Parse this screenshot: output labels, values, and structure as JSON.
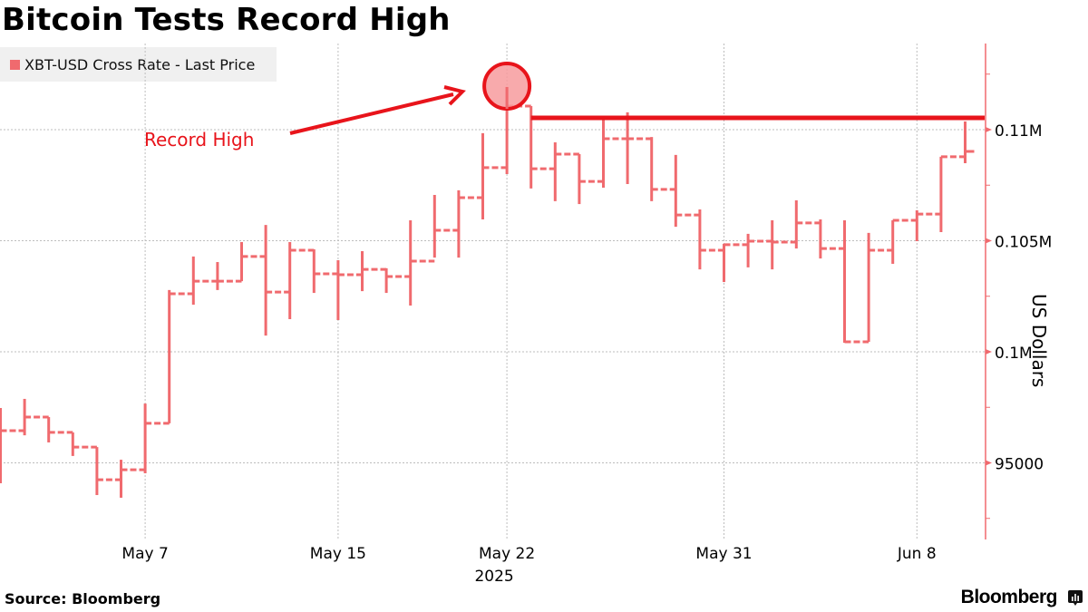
{
  "header": {
    "title": "Bitcoin Tests Record High"
  },
  "legend": {
    "label": "XBT-USD Cross Rate - Last Price",
    "color": "#f06a6e"
  },
  "footer": {
    "source": "Source: Bloomberg",
    "brand": "Bloomberg"
  },
  "annotation": {
    "label": "Record High",
    "color": "#e8141b",
    "circle_fill": "#f79b9e",
    "record_level": 110530
  },
  "chart_data": {
    "type": "bar",
    "subtype": "ohlc-high-low-close",
    "title": "Bitcoin Tests Record High",
    "xlabel": "",
    "ylabel": "US Dollars",
    "ylim": [
      92000,
      113500
    ],
    "yticks": [
      {
        "value": 95000,
        "label": "95000"
      },
      {
        "value": 100000,
        "label": "0.1M"
      },
      {
        "value": 105000,
        "label": "0.105M"
      },
      {
        "value": 110000,
        "label": "0.11M"
      }
    ],
    "xticks": [
      {
        "index": 6,
        "label": "May 7"
      },
      {
        "index": 14,
        "label": "May 15"
      },
      {
        "index": 21,
        "label": "May 22",
        "sublabel": "2025"
      },
      {
        "index": 30,
        "label": "May 31"
      },
      {
        "index": 38,
        "label": "Jun 8"
      }
    ],
    "grid": true,
    "legend_position": "top-left",
    "series": [
      {
        "name": "XBT-USD Cross Rate - Last Price",
        "color": "#f06a6e",
        "points": [
          {
            "date": "May 1",
            "high": 97470,
            "low": 94080,
            "close": 96450
          },
          {
            "date": "May 2",
            "high": 97880,
            "low": 96240,
            "close": 97060
          },
          {
            "date": "May 3",
            "high": 97060,
            "low": 95920,
            "close": 96370
          },
          {
            "date": "May 4",
            "high": 96370,
            "low": 95310,
            "close": 95710
          },
          {
            "date": "May 5",
            "high": 95710,
            "low": 93550,
            "close": 94240
          },
          {
            "date": "May 6",
            "high": 95140,
            "low": 93430,
            "close": 94690
          },
          {
            "date": "May 7",
            "high": 97670,
            "low": 94530,
            "close": 96780
          },
          {
            "date": "May 8",
            "high": 102780,
            "low": 96780,
            "close": 102610
          },
          {
            "date": "May 9",
            "high": 104290,
            "low": 102120,
            "close": 103180
          },
          {
            "date": "May 10",
            "high": 104040,
            "low": 102780,
            "close": 103180
          },
          {
            "date": "May 11",
            "high": 104940,
            "low": 103180,
            "close": 104290
          },
          {
            "date": "May 12",
            "high": 105710,
            "low": 100730,
            "close": 102690
          },
          {
            "date": "May 13",
            "high": 104940,
            "low": 101470,
            "close": 104570
          },
          {
            "date": "May 14",
            "high": 104610,
            "low": 102650,
            "close": 103510
          },
          {
            "date": "May 15",
            "high": 104120,
            "low": 101430,
            "close": 103470
          },
          {
            "date": "May 16",
            "high": 104530,
            "low": 102730,
            "close": 103710
          },
          {
            "date": "May 17",
            "high": 103760,
            "low": 102650,
            "close": 103390
          },
          {
            "date": "May 18",
            "high": 105920,
            "low": 102080,
            "close": 104080
          },
          {
            "date": "May 19",
            "high": 107060,
            "low": 104240,
            "close": 105470
          },
          {
            "date": "May 20",
            "high": 107270,
            "low": 104240,
            "close": 106940
          },
          {
            "date": "May 21",
            "high": 109840,
            "low": 105960,
            "close": 108290
          },
          {
            "date": "May 22",
            "high": 111920,
            "low": 108000,
            "close": 111060
          },
          {
            "date": "May 23",
            "high": 111060,
            "low": 107350,
            "close": 108240
          },
          {
            "date": "May 24",
            "high": 109430,
            "low": 106780,
            "close": 108900
          },
          {
            "date": "May 25",
            "high": 108900,
            "low": 106650,
            "close": 107670
          },
          {
            "date": "May 26",
            "high": 110450,
            "low": 107390,
            "close": 109590
          },
          {
            "date": "May 27",
            "high": 110780,
            "low": 107550,
            "close": 109590
          },
          {
            "date": "May 28",
            "high": 109670,
            "low": 106780,
            "close": 107310
          },
          {
            "date": "May 29",
            "high": 108860,
            "low": 105630,
            "close": 106160
          },
          {
            "date": "May 30",
            "high": 106410,
            "low": 103710,
            "close": 104570
          },
          {
            "date": "May 31",
            "high": 104860,
            "low": 103140,
            "close": 104820
          },
          {
            "date": "Jun 1",
            "high": 105310,
            "low": 103800,
            "close": 104980
          },
          {
            "date": "Jun 2",
            "high": 105920,
            "low": 103710,
            "close": 104940
          },
          {
            "date": "Jun 3",
            "high": 106820,
            "low": 104650,
            "close": 105800
          },
          {
            "date": "Jun 4",
            "high": 105960,
            "low": 104200,
            "close": 104650
          },
          {
            "date": "Jun 5",
            "high": 105920,
            "low": 100410,
            "close": 100450
          },
          {
            "date": "Jun 6",
            "high": 105350,
            "low": 100450,
            "close": 104570
          },
          {
            "date": "Jun 7",
            "high": 105920,
            "low": 103960,
            "close": 105920
          },
          {
            "date": "Jun 8",
            "high": 106370,
            "low": 104980,
            "close": 106200
          },
          {
            "date": "Jun 9",
            "high": 108780,
            "low": 105390,
            "close": 108780
          },
          {
            "date": "Jun 10",
            "high": 110370,
            "low": 108490,
            "close": 109020
          }
        ]
      }
    ],
    "annotations": [
      {
        "type": "text",
        "text": "Record High",
        "color": "#e8141b"
      },
      {
        "type": "circle",
        "target": "May 22",
        "value": 111920
      },
      {
        "type": "hline",
        "value": 110530,
        "from": "May 23",
        "to": "Jun 10"
      },
      {
        "type": "arrow",
        "to": "May 22 high"
      }
    ]
  }
}
